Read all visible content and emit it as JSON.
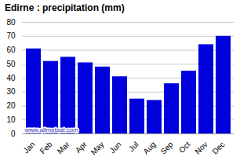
{
  "chart_data": {
    "type": "bar",
    "title": "Edirne : precipitation (mm)",
    "categories": [
      "Jan",
      "Feb",
      "Mar",
      "Apr",
      "May",
      "Jun",
      "Jul",
      "Aug",
      "Sep",
      "Oct",
      "Nov",
      "Dec"
    ],
    "values": [
      61,
      52,
      55,
      51,
      48,
      41,
      25,
      24,
      36,
      45,
      64,
      70
    ],
    "color": "#0000dd",
    "ylim": [
      0,
      80
    ],
    "yticks": [
      0,
      10,
      20,
      30,
      40,
      50,
      60,
      70,
      80
    ],
    "grid": true,
    "annotations": [
      "www.allmetsat.com"
    ]
  }
}
